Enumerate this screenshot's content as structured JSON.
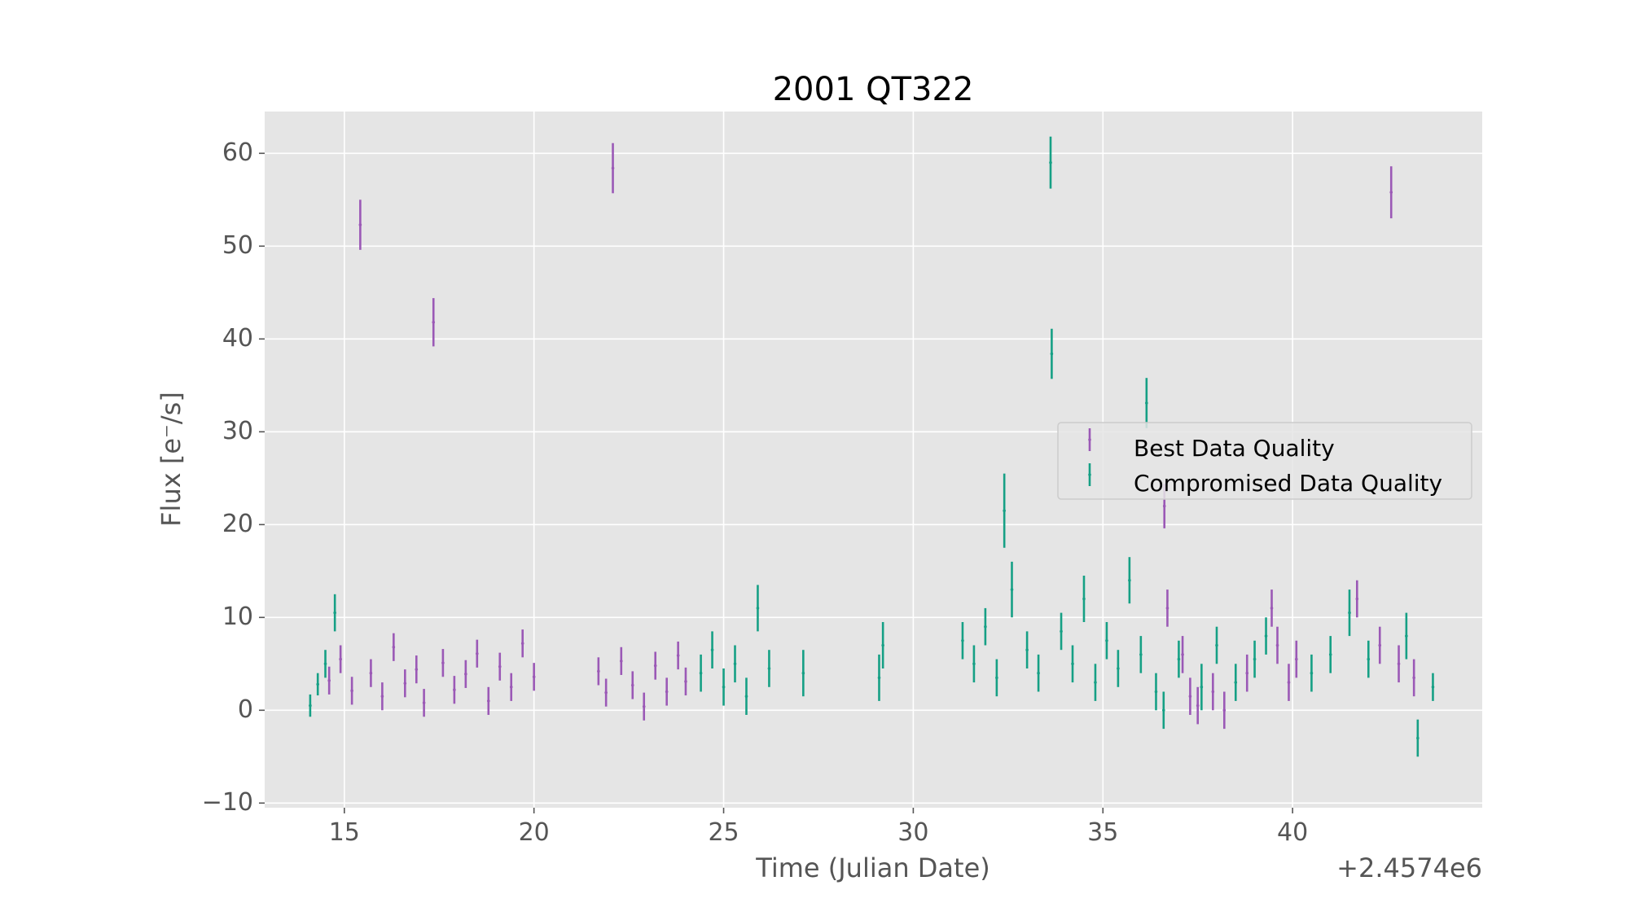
{
  "chart_data": {
    "type": "scatter",
    "title": "2001 QT322",
    "xlabel": "Time (Julian Date)",
    "ylabel": "Flux [e⁻/s]",
    "x_offset_label": "+2.4574e6",
    "xlim": [
      12.9,
      45.0
    ],
    "ylim": [
      -10.5,
      64.5
    ],
    "x_ticks": [
      15,
      20,
      25,
      30,
      35,
      40
    ],
    "x_tick_labels": [
      "15",
      "20",
      "25",
      "30",
      "35",
      "40"
    ],
    "y_ticks": [
      -10,
      0,
      10,
      20,
      30,
      40,
      50,
      60
    ],
    "y_tick_labels": [
      "−10",
      "0",
      "10",
      "20",
      "30",
      "40",
      "50",
      "60"
    ],
    "grid": true,
    "legend_position": "center-right",
    "series": [
      {
        "name": "Best Data Quality",
        "color": "#9b59b6",
        "points": [
          [
            14.6,
            3.2,
            1.5
          ],
          [
            14.9,
            5.5,
            1.5
          ],
          [
            15.2,
            2.1,
            1.5
          ],
          [
            15.42,
            52.3,
            2.7
          ],
          [
            15.7,
            4.0,
            1.5
          ],
          [
            16.0,
            1.5,
            1.5
          ],
          [
            16.3,
            6.8,
            1.5
          ],
          [
            16.6,
            2.9,
            1.5
          ],
          [
            16.9,
            4.4,
            1.5
          ],
          [
            17.1,
            0.8,
            1.5
          ],
          [
            17.35,
            41.8,
            2.6
          ],
          [
            17.6,
            5.1,
            1.5
          ],
          [
            17.9,
            2.2,
            1.5
          ],
          [
            18.2,
            3.9,
            1.5
          ],
          [
            18.5,
            6.1,
            1.5
          ],
          [
            18.8,
            1.0,
            1.5
          ],
          [
            19.1,
            4.7,
            1.5
          ],
          [
            19.4,
            2.5,
            1.5
          ],
          [
            19.7,
            7.2,
            1.5
          ],
          [
            20.0,
            3.6,
            1.5
          ],
          [
            21.7,
            4.2,
            1.5
          ],
          [
            21.9,
            1.9,
            1.5
          ],
          [
            22.08,
            58.4,
            2.7
          ],
          [
            22.3,
            5.3,
            1.5
          ],
          [
            22.6,
            2.7,
            1.5
          ],
          [
            22.9,
            0.4,
            1.5
          ],
          [
            23.2,
            4.8,
            1.5
          ],
          [
            23.5,
            2.0,
            1.5
          ],
          [
            23.8,
            5.9,
            1.5
          ],
          [
            24.0,
            3.1,
            1.5
          ],
          [
            36.62,
            22.0,
            2.4
          ],
          [
            36.7,
            11.0,
            2.0
          ],
          [
            37.1,
            6.0,
            2.0
          ],
          [
            37.3,
            1.5,
            2.0
          ],
          [
            37.5,
            0.5,
            2.0
          ],
          [
            37.9,
            2.0,
            2.0
          ],
          [
            38.2,
            0.0,
            2.0
          ],
          [
            38.8,
            4.0,
            2.0
          ],
          [
            39.45,
            11.0,
            2.0
          ],
          [
            39.6,
            7.0,
            2.0
          ],
          [
            39.9,
            3.0,
            2.0
          ],
          [
            40.1,
            5.5,
            2.0
          ],
          [
            41.7,
            12.0,
            2.0
          ],
          [
            42.3,
            7.0,
            2.0
          ],
          [
            42.6,
            55.8,
            2.8
          ],
          [
            42.8,
            5.0,
            2.0
          ],
          [
            43.2,
            3.5,
            2.0
          ]
        ]
      },
      {
        "name": "Compromised Data Quality",
        "color": "#16a085",
        "points": [
          [
            14.1,
            0.5,
            1.2
          ],
          [
            14.3,
            2.8,
            1.2
          ],
          [
            14.5,
            5.0,
            1.5
          ],
          [
            14.75,
            10.5,
            2.0
          ],
          [
            24.4,
            4.0,
            2.0
          ],
          [
            24.7,
            6.5,
            2.0
          ],
          [
            25.0,
            2.5,
            2.0
          ],
          [
            25.3,
            5.0,
            2.0
          ],
          [
            25.6,
            1.5,
            2.0
          ],
          [
            25.9,
            11.0,
            2.5
          ],
          [
            26.2,
            4.5,
            2.0
          ],
          [
            27.1,
            4.0,
            2.5
          ],
          [
            29.1,
            3.5,
            2.5
          ],
          [
            29.2,
            7.0,
            2.5
          ],
          [
            31.3,
            7.5,
            2.0
          ],
          [
            31.6,
            5.0,
            2.0
          ],
          [
            31.9,
            9.0,
            2.0
          ],
          [
            32.2,
            3.5,
            2.0
          ],
          [
            32.4,
            21.5,
            4.0
          ],
          [
            32.6,
            13.0,
            3.0
          ],
          [
            33.0,
            6.5,
            2.0
          ],
          [
            33.3,
            4.0,
            2.0
          ],
          [
            33.62,
            59.0,
            2.8
          ],
          [
            33.65,
            38.4,
            2.7
          ],
          [
            33.9,
            8.5,
            2.0
          ],
          [
            34.2,
            5.0,
            2.0
          ],
          [
            34.5,
            12.0,
            2.5
          ],
          [
            34.8,
            3.0,
            2.0
          ],
          [
            35.1,
            7.5,
            2.0
          ],
          [
            35.4,
            4.5,
            2.0
          ],
          [
            35.7,
            14.0,
            2.5
          ],
          [
            36.0,
            6.0,
            2.0
          ],
          [
            36.15,
            33.1,
            2.7
          ],
          [
            36.4,
            2.0,
            2.0
          ],
          [
            36.6,
            0.0,
            2.0
          ],
          [
            37.0,
            5.5,
            2.0
          ],
          [
            37.6,
            2.5,
            2.5
          ],
          [
            38.0,
            7.0,
            2.0
          ],
          [
            38.5,
            3.0,
            2.0
          ],
          [
            39.0,
            5.5,
            2.0
          ],
          [
            39.3,
            8.0,
            2.0
          ],
          [
            40.5,
            4.0,
            2.0
          ],
          [
            41.0,
            6.0,
            2.0
          ],
          [
            41.5,
            10.5,
            2.5
          ],
          [
            42.0,
            5.5,
            2.0
          ],
          [
            43.0,
            8.0,
            2.5
          ],
          [
            43.3,
            -3.0,
            2.0
          ],
          [
            43.7,
            2.5,
            1.5
          ]
        ]
      }
    ]
  }
}
